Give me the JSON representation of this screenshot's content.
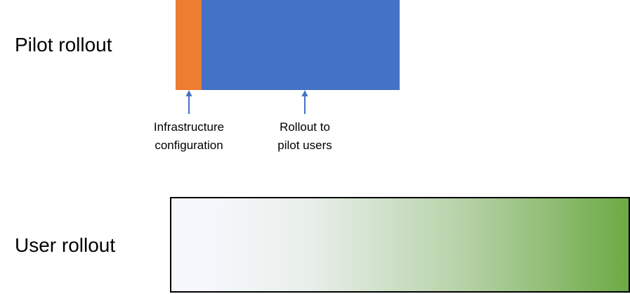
{
  "rows": {
    "pilot": {
      "label": "Pilot rollout",
      "phases": [
        {
          "name": "Infrastructure configuration",
          "color": "#ED7D31"
        },
        {
          "name": "Rollout to pilot users",
          "color": "#4472C4"
        }
      ]
    },
    "user": {
      "label": "User rollout",
      "gradient": {
        "from": "#F5F7FC",
        "to": "#6DAA45"
      }
    }
  },
  "annotations": {
    "infrastructure": {
      "line1": "Infrastructure",
      "line2": "configuration",
      "arrow_color": "#4472C4",
      "icon": "arrow-up-icon"
    },
    "rollout": {
      "line1": "Rollout to",
      "line2": "pilot users",
      "arrow_color": "#4472C4",
      "icon": "arrow-up-icon"
    }
  }
}
